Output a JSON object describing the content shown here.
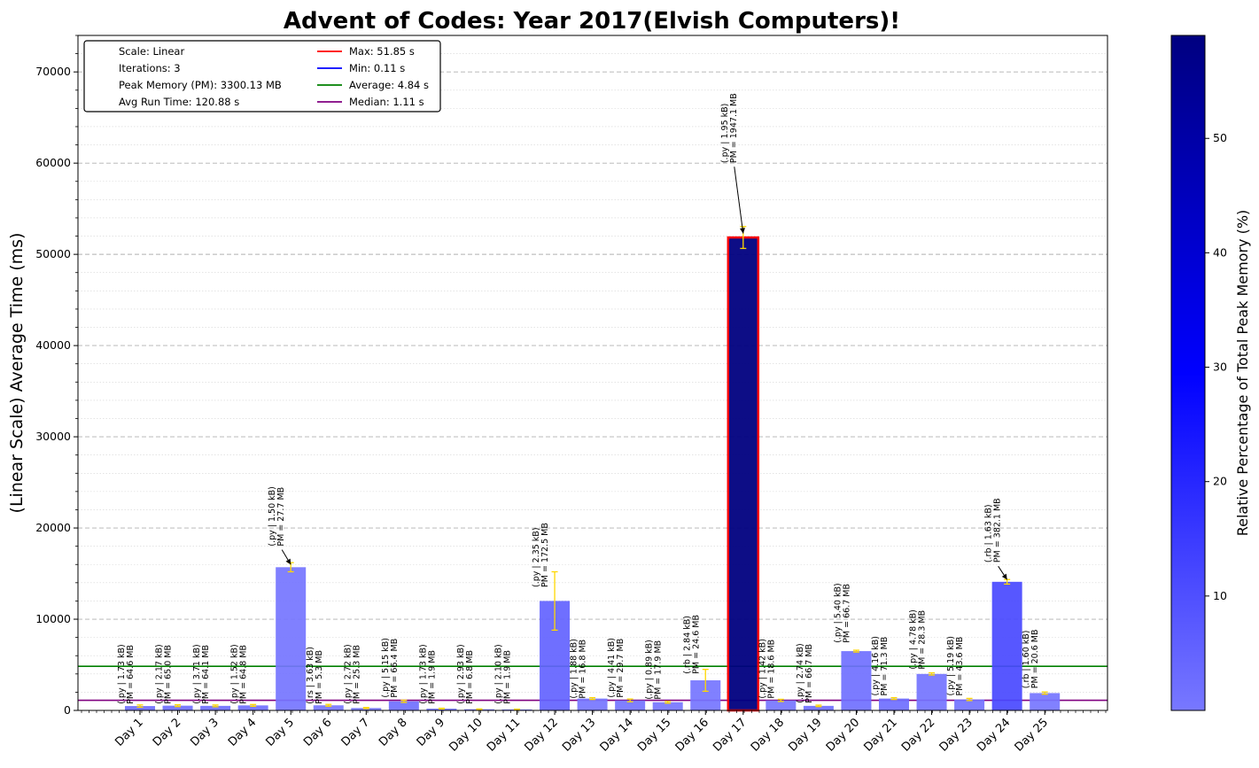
{
  "chart_data": {
    "type": "bar",
    "title": "Advent of Codes: Year 2017(Elvish Computers)!",
    "ylabel": "(Linear Scale) Average Time (ms)",
    "xlabel": "",
    "ylim": [
      0,
      74000
    ],
    "yticks": [
      0,
      10000,
      20000,
      30000,
      40000,
      50000,
      60000,
      70000
    ],
    "categories": [
      "Day 1",
      "Day 2",
      "Day 3",
      "Day 4",
      "Day 5",
      "Day 6",
      "Day 7",
      "Day 8",
      "Day 9",
      "Day 10",
      "Day 11",
      "Day 12",
      "Day 13",
      "Day 14",
      "Day 15",
      "Day 16",
      "Day 17",
      "Day 18",
      "Day 19",
      "Day 20",
      "Day 21",
      "Day 22",
      "Day 23",
      "Day 24",
      "Day 25"
    ],
    "values": [
      480,
      520,
      500,
      550,
      15700,
      560,
      260,
      1000,
      200,
      130,
      110,
      12000,
      1300,
      1100,
      900,
      3300,
      51850,
      1100,
      500,
      6500,
      1300,
      4000,
      1200,
      14100,
      1900
    ],
    "errors": [
      120,
      100,
      100,
      100,
      500,
      100,
      60,
      120,
      40,
      30,
      30,
      3200,
      100,
      150,
      100,
      1200,
      1200,
      120,
      80,
      100,
      100,
      120,
      120,
      250,
      120
    ],
    "memory_pct": [
      2.0,
      2.0,
      1.9,
      2.0,
      0.8,
      0.2,
      0.8,
      2.0,
      0.1,
      0.2,
      0.1,
      5.2,
      0.5,
      0.9,
      0.5,
      0.7,
      59.0,
      0.6,
      2.0,
      2.0,
      2.2,
      0.9,
      1.3,
      11.6,
      0.6
    ],
    "annotations": [
      [
        "(.py | 1.73 kB)",
        "PM = 64.6 MB"
      ],
      [
        "(.py | 2.17 kB)",
        "PM = 65.0 MB"
      ],
      [
        "(.py | 3.71 kB)",
        "PM = 64.1 MB"
      ],
      [
        "(.py | 1.52 kB)",
        "PM = 64.8 MB"
      ],
      [
        "(.py | 1.50 kB)",
        "PM = 27.7 MB"
      ],
      [
        "(.rs | 3.63 kB)",
        "PM = 5.3 MB"
      ],
      [
        "(.py | 2.72 kB)",
        "PM = 25.3 MB"
      ],
      [
        "(.py | 5.15 kB)",
        "PM = 66.4 MB"
      ],
      [
        "(.py | 1.73 kB)",
        "PM = 1.9 MB"
      ],
      [
        "(.py | 2.93 kB)",
        "PM = 6.8 MB"
      ],
      [
        "(.py | 2.10 kB)",
        "PM = 1.9 MB"
      ],
      [
        "(.py | 2.35 kB)",
        "PM = 172.5 MB"
      ],
      [
        "(.py | 1.88 kB)",
        "PM = 16.8 MB"
      ],
      [
        "(.py | 4.41 kB)",
        "PM = 29.7 MB"
      ],
      [
        "(.py | 0.89 kB)",
        "PM = 17.9 MB"
      ],
      [
        "(.rb | 2.84 kB)",
        "PM = 24.6 MB"
      ],
      [
        "(.py | 1.95 kB)",
        "PM = 1947.1 MB"
      ],
      [
        "(.py | 1.42 kB)",
        "PM = 18.6 MB"
      ],
      [
        "(.py | 2.74 kB)",
        "PM = 66.7 MB"
      ],
      [
        "(.py | 5.40 kB)",
        "PM = 66.7 MB"
      ],
      [
        "(.py | 4.16 kB)",
        "PM = 71.3 MB"
      ],
      [
        "(.py | 4.78 kB)",
        "PM = 28.3 MB"
      ],
      [
        "(.py | 5.19 kB)",
        "PM = 43.6 MB"
      ],
      [
        "(.rb | 1.63 kB)",
        "PM = 382.1 MB"
      ],
      [
        "(.rb | 1.60 kB)",
        "PM = 20.6 MB"
      ]
    ],
    "annotation_text_values": [
      700,
      700,
      700,
      700,
      18000,
      700,
      700,
      1400,
      700,
      700,
      700,
      13500,
      1300,
      1400,
      1200,
      4000,
      60000,
      1300,
      800,
      7400,
      1600,
      4500,
      1600,
      16200,
      2400
    ],
    "highlight_bar": "Day 17",
    "reference_lines": [
      {
        "name": "Max",
        "label": "Max: 51.85 s",
        "value": 51850,
        "color": "#ff0000",
        "drawn": false
      },
      {
        "name": "Min",
        "label": "Min: 0.11 s",
        "value": 110,
        "color": "#0000ff",
        "drawn": false
      },
      {
        "name": "Average",
        "label": "Average: 4.84 s",
        "value": 4840,
        "color": "#008000",
        "drawn": true
      },
      {
        "name": "Median",
        "label": "Median: 1.11 s",
        "value": 1110,
        "color": "#800080",
        "drawn": true
      }
    ],
    "legend_info": [
      "Scale: Linear",
      "Iterations: 3",
      "Peak Memory (PM): 3300.13 MB",
      "Avg Run Time: 120.88 s"
    ],
    "legend_position": "top-left",
    "colorbar": {
      "label": "Relative Percentage of Total Peak Memory (%)",
      "range": [
        0,
        59
      ],
      "ticks": [
        10,
        20,
        30,
        40,
        50
      ]
    },
    "grid": true
  },
  "colors": {
    "bar_light": "#7070ff",
    "bar_mid": "#0000ff",
    "bar_dark": "#000080",
    "highlight_edge": "#ff0000",
    "error_bar": "#ffd700",
    "grid": "#b0b0b0"
  }
}
